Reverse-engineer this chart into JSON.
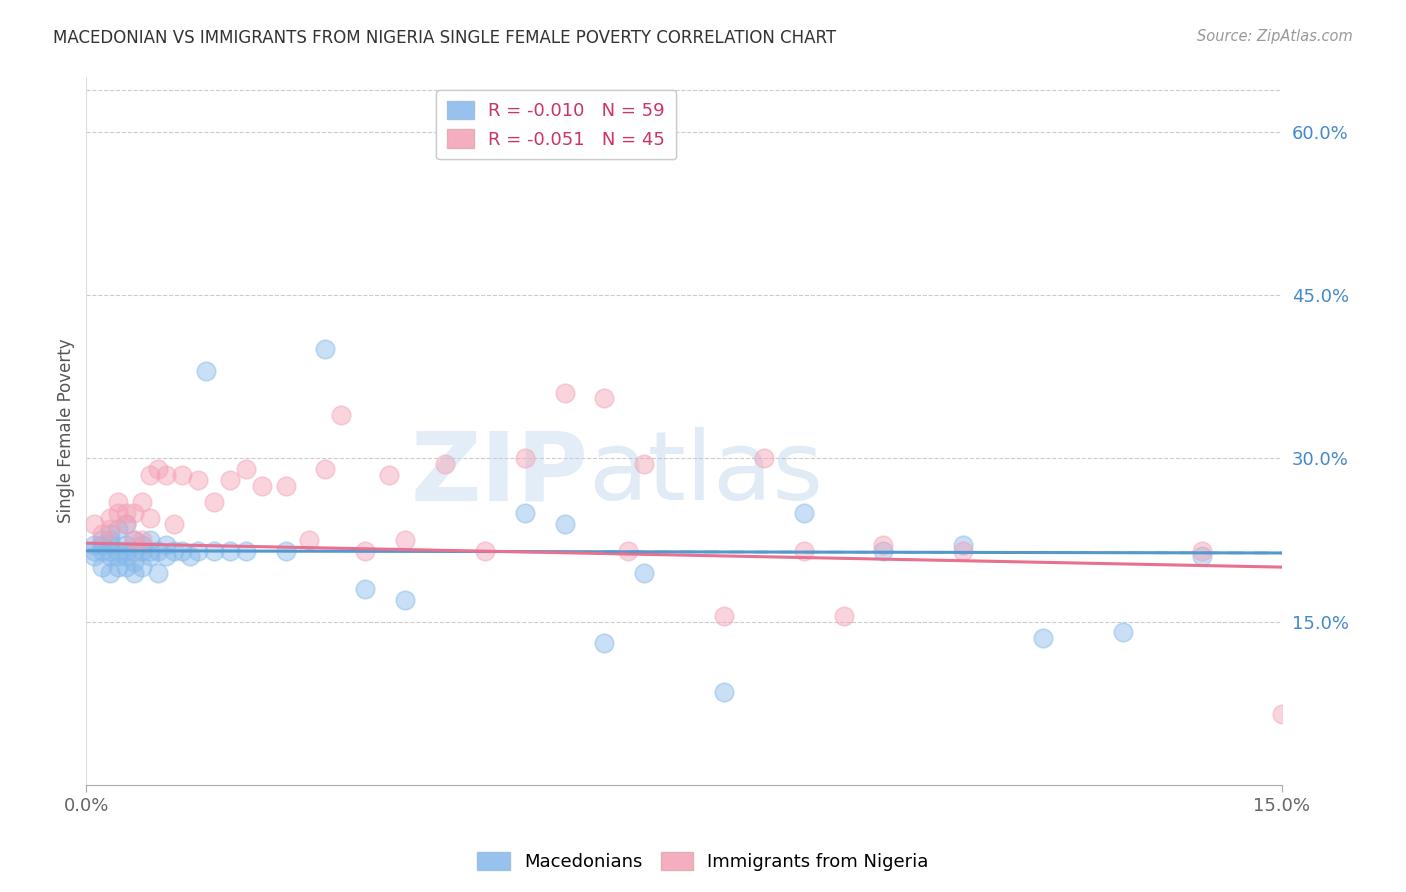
{
  "title": "MACEDONIAN VS IMMIGRANTS FROM NIGERIA SINGLE FEMALE POVERTY CORRELATION CHART",
  "source": "Source: ZipAtlas.com",
  "ylabel": "Single Female Poverty",
  "right_ytick_labels": [
    "60.0%",
    "45.0%",
    "30.0%",
    "15.0%"
  ],
  "right_ytick_values": [
    0.6,
    0.45,
    0.3,
    0.15
  ],
  "xlim": [
    0.0,
    0.15
  ],
  "ylim": [
    0.0,
    0.65
  ],
  "legend_entry1": "R = -0.010   N = 59",
  "legend_entry2": "R = -0.051   N = 45",
  "legend_label1": "Macedonians",
  "legend_label2": "Immigrants from Nigeria",
  "color_macedonian": "#85B8EA",
  "color_nigeria": "#F4A0B5",
  "trend_color_mac": "#5599CC",
  "trend_color_nig": "#E87090",
  "watermark_zip": "ZIP",
  "watermark_atlas": "atlas",
  "macedonian_x": [
    0.001,
    0.001,
    0.001,
    0.002,
    0.002,
    0.002,
    0.002,
    0.003,
    0.003,
    0.003,
    0.003,
    0.003,
    0.003,
    0.004,
    0.004,
    0.004,
    0.004,
    0.005,
    0.005,
    0.005,
    0.005,
    0.005,
    0.006,
    0.006,
    0.006,
    0.006,
    0.007,
    0.007,
    0.007,
    0.008,
    0.008,
    0.008,
    0.009,
    0.009,
    0.01,
    0.01,
    0.011,
    0.012,
    0.013,
    0.014,
    0.015,
    0.016,
    0.018,
    0.02,
    0.025,
    0.03,
    0.035,
    0.04,
    0.055,
    0.06,
    0.065,
    0.07,
    0.08,
    0.09,
    0.1,
    0.11,
    0.12,
    0.13,
    0.14
  ],
  "macedonian_y": [
    0.21,
    0.215,
    0.22,
    0.2,
    0.215,
    0.22,
    0.225,
    0.195,
    0.21,
    0.215,
    0.22,
    0.225,
    0.23,
    0.2,
    0.21,
    0.215,
    0.235,
    0.2,
    0.21,
    0.215,
    0.22,
    0.24,
    0.195,
    0.205,
    0.215,
    0.225,
    0.2,
    0.215,
    0.22,
    0.21,
    0.215,
    0.225,
    0.195,
    0.215,
    0.21,
    0.22,
    0.215,
    0.215,
    0.21,
    0.215,
    0.38,
    0.215,
    0.215,
    0.215,
    0.215,
    0.4,
    0.18,
    0.17,
    0.25,
    0.24,
    0.13,
    0.195,
    0.085,
    0.25,
    0.215,
    0.22,
    0.135,
    0.14,
    0.21
  ],
  "nigeria_x": [
    0.001,
    0.002,
    0.003,
    0.003,
    0.004,
    0.004,
    0.005,
    0.005,
    0.006,
    0.006,
    0.007,
    0.007,
    0.008,
    0.008,
    0.009,
    0.01,
    0.011,
    0.012,
    0.014,
    0.016,
    0.018,
    0.02,
    0.022,
    0.025,
    0.028,
    0.03,
    0.032,
    0.035,
    0.038,
    0.04,
    0.045,
    0.05,
    0.055,
    0.06,
    0.065,
    0.068,
    0.07,
    0.08,
    0.085,
    0.09,
    0.095,
    0.1,
    0.11,
    0.14,
    0.15
  ],
  "nigeria_y": [
    0.24,
    0.23,
    0.235,
    0.245,
    0.25,
    0.26,
    0.24,
    0.25,
    0.225,
    0.25,
    0.26,
    0.225,
    0.285,
    0.245,
    0.29,
    0.285,
    0.24,
    0.285,
    0.28,
    0.26,
    0.28,
    0.29,
    0.275,
    0.275,
    0.225,
    0.29,
    0.34,
    0.215,
    0.285,
    0.225,
    0.295,
    0.215,
    0.3,
    0.36,
    0.355,
    0.215,
    0.295,
    0.155,
    0.3,
    0.215,
    0.155,
    0.22,
    0.215,
    0.215,
    0.065
  ]
}
